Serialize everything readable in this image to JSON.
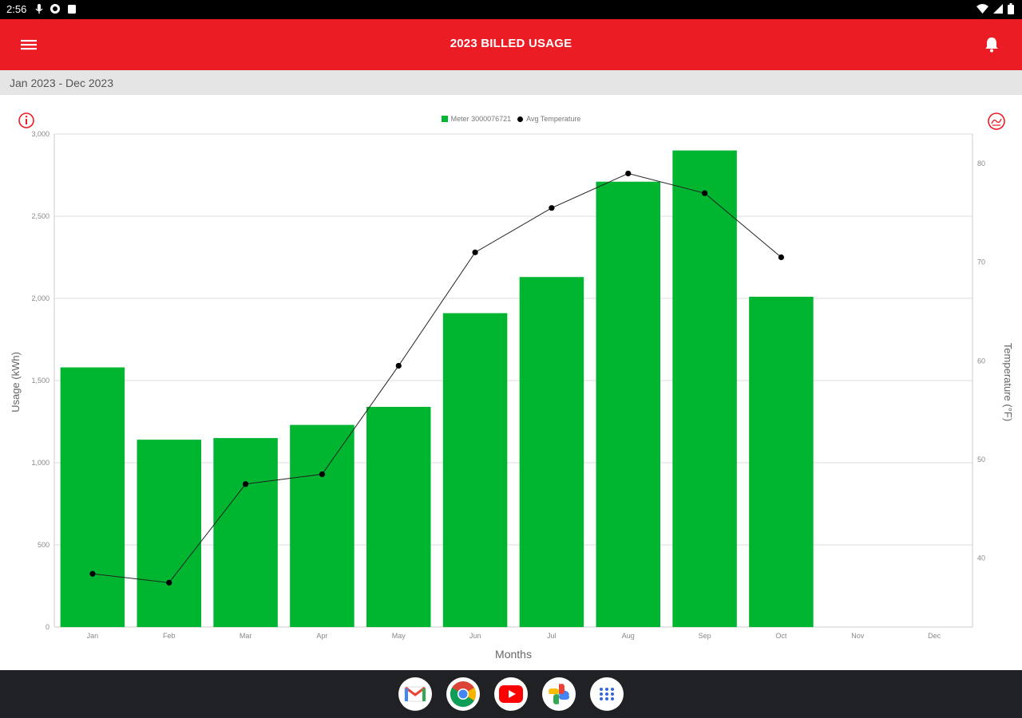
{
  "status_bar": {
    "time": "2:56"
  },
  "app_bar": {
    "title": "2023 BILLED USAGE"
  },
  "date_bar": {
    "range": "Jan 2023 - Dec 2023"
  },
  "colors": {
    "accent": "#ec1c24",
    "bar": "#00b530",
    "line": "#222222",
    "grid": "#dddddd"
  },
  "icons": {
    "menu": "hamburger-menu-icon",
    "bell": "bell-icon",
    "info": "info-icon",
    "weather": "temperature-icon"
  },
  "chart_data": {
    "type": "bar",
    "xlabel": "Months",
    "ylabel": "Usage (kWh)",
    "y2label": "Temperature (°F)",
    "categories": [
      "Jan",
      "Feb",
      "Mar",
      "Apr",
      "May",
      "Jun",
      "Jul",
      "Aug",
      "Sep",
      "Oct",
      "Nov",
      "Dec"
    ],
    "ylim": [
      0,
      3000
    ],
    "y_ticks": [
      0,
      500,
      1000,
      1500,
      2000,
      2500,
      3000
    ],
    "y_tick_labels": [
      "0",
      "500",
      "1,000",
      "1,500",
      "2,000",
      "2,500",
      "3,000"
    ],
    "y2lim": [
      33,
      83
    ],
    "y2_ticks": [
      40,
      50,
      60,
      70,
      80
    ],
    "y2_tick_labels": [
      "40",
      "50",
      "60",
      "70",
      "80"
    ],
    "grid": true,
    "legend_position": "top-center",
    "series": [
      {
        "name": "Meter 3000076721",
        "type": "bar",
        "axis": "left",
        "values": [
          1580,
          1140,
          1150,
          1230,
          1340,
          1910,
          2130,
          2710,
          2900,
          2010,
          null,
          null
        ]
      },
      {
        "name": "Avg Temperature",
        "type": "line",
        "axis": "right",
        "values": [
          38.4,
          37.5,
          47.5,
          48.5,
          59.5,
          71.0,
          75.5,
          79.0,
          77.0,
          70.5,
          null,
          null
        ]
      }
    ]
  },
  "dock": {
    "apps": [
      {
        "name": "Gmail",
        "icon": "gmail-icon"
      },
      {
        "name": "Chrome",
        "icon": "chrome-icon"
      },
      {
        "name": "YouTube",
        "icon": "youtube-icon"
      },
      {
        "name": "Photos",
        "icon": "photos-icon"
      },
      {
        "name": "App drawer",
        "icon": "app-drawer-icon"
      }
    ]
  }
}
